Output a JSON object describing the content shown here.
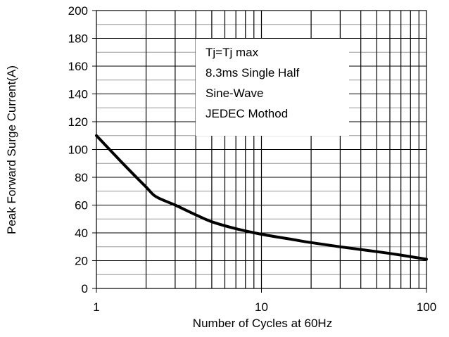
{
  "chart_data": {
    "type": "line",
    "xlabel": "Number of Cycles at 60Hz",
    "ylabel": "Peak Forward Surge Current(A)",
    "xscale": "log",
    "xlim": [
      1,
      100
    ],
    "ylim": [
      0,
      200
    ],
    "grid": true,
    "x_ticks": [
      "1",
      "10",
      "100"
    ],
    "y_ticks": [
      "0",
      "20",
      "40",
      "60",
      "80",
      "100",
      "120",
      "140",
      "160",
      "180",
      "200"
    ],
    "annotation": {
      "lines": [
        "Tj=Tj max",
        "8.3ms Single Half",
        "Sine-Wave",
        "JEDEC Mothod"
      ]
    },
    "series": [
      {
        "color": "#000000",
        "x": [
          1,
          1.5,
          2,
          2.3,
          3,
          4,
          5,
          7,
          10,
          15,
          20,
          30,
          50,
          70,
          100
        ],
        "y": [
          110,
          88,
          73,
          66,
          60,
          53,
          48,
          43,
          39,
          35.5,
          33,
          30,
          26.5,
          24,
          21
        ]
      }
    ]
  }
}
